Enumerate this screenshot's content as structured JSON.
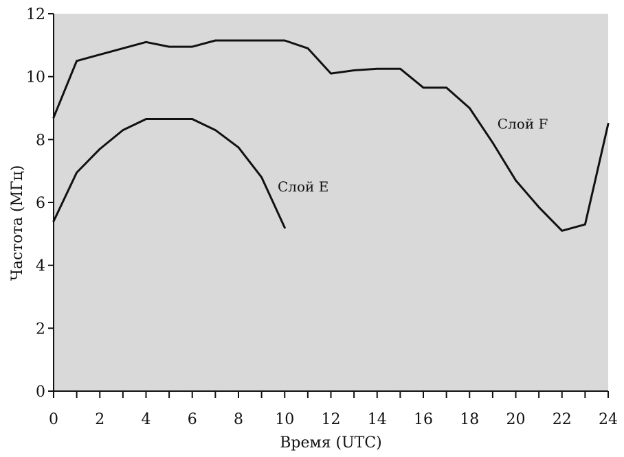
{
  "chart_data": {
    "type": "line",
    "xlabel": "Время (UTC)",
    "ylabel": "Частота (МГц)",
    "xlim": [
      0,
      24
    ],
    "ylim": [
      0,
      12
    ],
    "x_ticks": [
      0,
      2,
      4,
      6,
      8,
      10,
      12,
      14,
      16,
      18,
      20,
      22,
      24
    ],
    "y_ticks": [
      0,
      2,
      4,
      6,
      8,
      10,
      12
    ],
    "x_minor_ticks": [
      1,
      3,
      5,
      7,
      9,
      11,
      13,
      15,
      17,
      19,
      21,
      23
    ],
    "grid": false,
    "background_color": "#d9d9d9",
    "line_color": "#111111",
    "series": [
      {
        "name": "Слой F",
        "x": [
          0,
          1,
          2,
          3,
          4,
          5,
          6,
          7,
          8,
          9,
          10,
          11,
          12,
          13,
          14,
          15,
          16,
          17,
          18,
          19,
          20,
          21,
          22,
          23,
          24
        ],
        "y": [
          8.7,
          10.5,
          10.7,
          10.9,
          11.1,
          10.95,
          10.95,
          11.15,
          11.15,
          11.15,
          11.15,
          10.9,
          10.1,
          10.2,
          10.25,
          10.25,
          9.65,
          9.65,
          9.0,
          7.9,
          6.7,
          5.85,
          5.1,
          5.3,
          8.5
        ]
      },
      {
        "name": "Слой E",
        "x": [
          0,
          1,
          2,
          3,
          4,
          5,
          6,
          7,
          8,
          9,
          10
        ],
        "y": [
          5.4,
          6.95,
          7.7,
          8.3,
          8.65,
          8.65,
          8.65,
          8.3,
          7.75,
          6.8,
          5.2
        ]
      }
    ],
    "annotations": [
      {
        "text": "Слой F",
        "x": 20.3,
        "y": 8.35
      },
      {
        "text": "Слой E",
        "x": 10.8,
        "y": 6.35
      }
    ]
  }
}
